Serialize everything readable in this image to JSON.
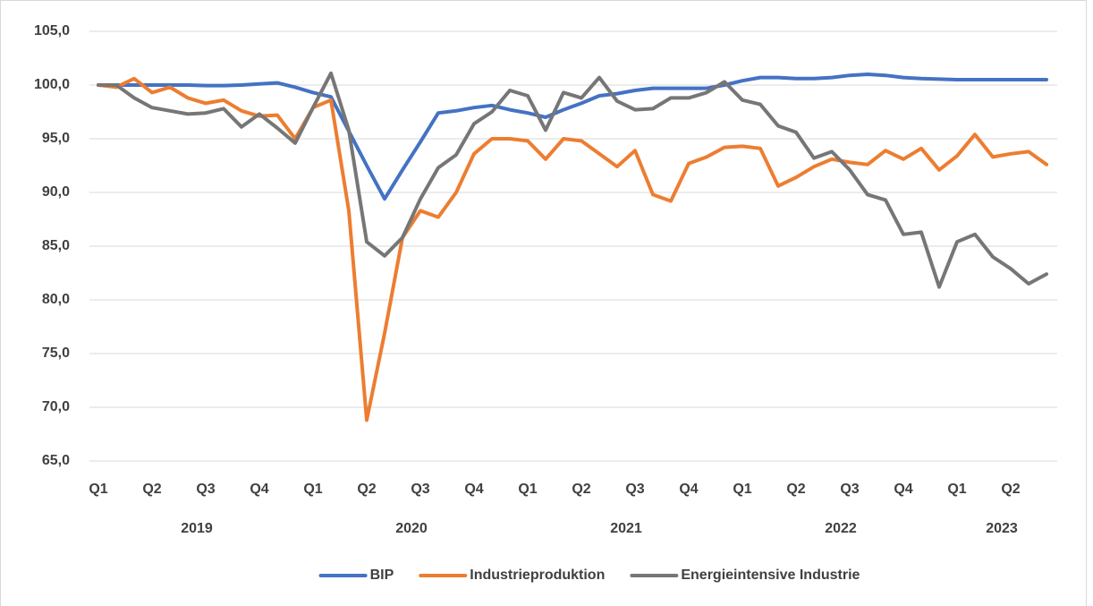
{
  "chart_data": {
    "type": "line",
    "categories": [
      "Q1",
      null,
      null,
      "Q2",
      null,
      null,
      "Q3",
      null,
      null,
      "Q4",
      null,
      null,
      "Q1",
      null,
      null,
      "Q2",
      null,
      null,
      "Q3",
      null,
      null,
      "Q4",
      null,
      null,
      "Q1",
      null,
      null,
      "Q2",
      null,
      null,
      "Q3",
      null,
      null,
      "Q4",
      null,
      null,
      "Q1",
      null,
      null,
      "Q2",
      null,
      null,
      "Q3",
      null,
      null,
      "Q4",
      null,
      null,
      "Q1",
      null,
      null,
      "Q2",
      null,
      null
    ],
    "x_groups": [
      "2019",
      "2020",
      "2021",
      "2022",
      "2023"
    ],
    "series": [
      {
        "name": "BIP",
        "color": "#4472c4",
        "values": [
          100,
          100,
          100,
          100,
          100,
          100,
          99.95,
          99.95,
          100,
          100.1,
          100.2,
          99.8,
          99.3,
          98.9,
          95.7,
          92.5,
          89.4,
          92.1,
          94.7,
          97.4,
          97.6,
          97.9,
          98.1,
          97.7,
          97.4,
          97.0,
          97.7,
          98.3,
          99.0,
          99.2,
          99.5,
          99.7,
          99.7,
          99.7,
          99.7,
          100.0,
          100.4,
          100.7,
          100.7,
          100.6,
          100.6,
          100.7,
          100.9,
          101.0,
          100.9,
          100.7,
          100.6,
          100.55,
          100.5,
          100.5,
          100.5,
          100.5,
          100.5,
          100.5
        ]
      },
      {
        "name": "Industrieproduktion",
        "color": "#ed7d31",
        "values": [
          100.0,
          99.8,
          100.6,
          99.3,
          99.8,
          98.8,
          98.3,
          98.6,
          97.6,
          97.1,
          97.2,
          95.0,
          97.9,
          98.6,
          88.3,
          68.8,
          76.9,
          85.8,
          88.3,
          87.7,
          90.0,
          93.6,
          95.0,
          95.0,
          94.8,
          93.1,
          95.0,
          94.8,
          93.6,
          92.4,
          93.9,
          89.8,
          89.2,
          92.7,
          93.3,
          94.2,
          94.3,
          94.1,
          90.6,
          91.4,
          92.4,
          93.1,
          92.8,
          92.6,
          93.9,
          93.1,
          94.1,
          92.1,
          93.4,
          95.4,
          93.3,
          93.6,
          93.8,
          92.6
        ]
      },
      {
        "name": "Energieintensive Industrie",
        "color": "#767676",
        "values": [
          100.0,
          100.0,
          98.8,
          97.9,
          97.6,
          97.3,
          97.4,
          97.8,
          96.1,
          97.3,
          96.0,
          94.6,
          97.9,
          101.1,
          95.8,
          85.4,
          84.1,
          85.8,
          89.4,
          92.3,
          93.5,
          96.4,
          97.5,
          99.5,
          99.0,
          95.8,
          99.3,
          98.8,
          100.7,
          98.5,
          97.7,
          97.8,
          98.8,
          98.8,
          99.3,
          100.3,
          98.6,
          98.2,
          96.2,
          95.6,
          93.2,
          93.8,
          92.1,
          89.8,
          89.3,
          86.1,
          86.3,
          81.2,
          85.4,
          86.1,
          84.0,
          82.9,
          81.5,
          82.4
        ]
      }
    ],
    "ylim": [
      65,
      105
    ],
    "yticks": [
      {
        "value": 65,
        "label": "65,0"
      },
      {
        "value": 70,
        "label": "70,0"
      },
      {
        "value": 75,
        "label": "75,0"
      },
      {
        "value": 80,
        "label": "80,0"
      },
      {
        "value": 85,
        "label": "85,0"
      },
      {
        "value": 90,
        "label": "90,0"
      },
      {
        "value": 95,
        "label": "95,0"
      },
      {
        "value": 100,
        "label": "100,0"
      },
      {
        "value": 105,
        "label": "105,0"
      }
    ],
    "grid": true,
    "legend": "bottom"
  }
}
